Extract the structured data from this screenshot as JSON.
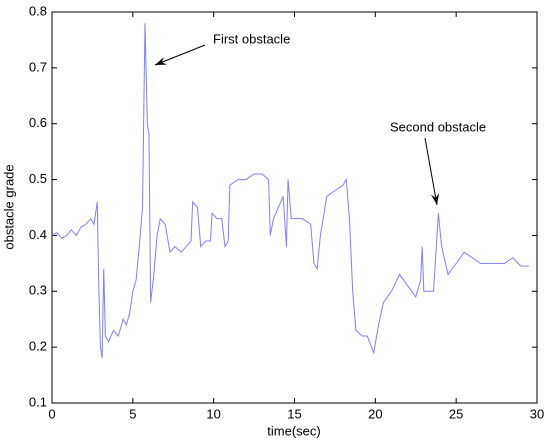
{
  "chart_data": {
    "type": "line",
    "xlabel": "time(sec)",
    "ylabel": "obstacle grade",
    "annotations": [
      "First obstacle",
      "Second obstacle"
    ],
    "xlim": [
      0,
      30
    ],
    "xticks": [
      0,
      5,
      10,
      15,
      20,
      25,
      30
    ],
    "ylim": [
      0.1,
      0.8
    ],
    "yticks": [
      0.1,
      0.2,
      0.3,
      0.4,
      0.5,
      0.6,
      0.7,
      0.8
    ],
    "color": "#7f7fff",
    "x": [
      0,
      0.3,
      0.6,
      0.9,
      1.2,
      1.5,
      1.8,
      2.1,
      2.4,
      2.6,
      2.8,
      2.9,
      3.0,
      3.1,
      3.2,
      3.3,
      3.5,
      3.8,
      4.1,
      4.4,
      4.6,
      4.8,
      5.0,
      5.2,
      5.4,
      5.6,
      5.75,
      5.9,
      6.0,
      6.1,
      6.3,
      6.5,
      6.7,
      7.0,
      7.3,
      7.6,
      8.0,
      8.3,
      8.6,
      8.7,
      9.0,
      9.2,
      9.5,
      9.8,
      9.9,
      10.2,
      10.5,
      10.7,
      10.9,
      11.0,
      11.5,
      12.0,
      12.5,
      13.0,
      13.4,
      13.5,
      13.7,
      14.0,
      14.3,
      14.5,
      14.6,
      14.8,
      15.2,
      15.5,
      16.0,
      16.2,
      16.4,
      16.6,
      17.0,
      17.5,
      18.0,
      18.2,
      18.4,
      18.6,
      18.8,
      19.2,
      19.5,
      19.9,
      20.2,
      20.5,
      21.0,
      21.5,
      22.0,
      22.5,
      22.8,
      22.9,
      23.0,
      23.3,
      23.6,
      23.9,
      24.1,
      24.5,
      25.0,
      25.5,
      26.0,
      26.5,
      27.0,
      27.5,
      28.0,
      28.5,
      29.0,
      29.5
    ],
    "values": [
      0.4,
      0.405,
      0.395,
      0.4,
      0.41,
      0.4,
      0.415,
      0.42,
      0.43,
      0.42,
      0.46,
      0.3,
      0.2,
      0.18,
      0.34,
      0.22,
      0.21,
      0.23,
      0.22,
      0.25,
      0.24,
      0.26,
      0.3,
      0.32,
      0.38,
      0.45,
      0.78,
      0.6,
      0.58,
      0.28,
      0.33,
      0.4,
      0.43,
      0.42,
      0.37,
      0.38,
      0.37,
      0.38,
      0.39,
      0.46,
      0.45,
      0.38,
      0.39,
      0.39,
      0.44,
      0.43,
      0.43,
      0.38,
      0.39,
      0.49,
      0.5,
      0.5,
      0.51,
      0.51,
      0.5,
      0.4,
      0.43,
      0.45,
      0.47,
      0.38,
      0.5,
      0.43,
      0.43,
      0.43,
      0.42,
      0.35,
      0.34,
      0.4,
      0.47,
      0.48,
      0.49,
      0.5,
      0.43,
      0.3,
      0.23,
      0.22,
      0.22,
      0.19,
      0.24,
      0.28,
      0.3,
      0.33,
      0.31,
      0.29,
      0.32,
      0.38,
      0.3,
      0.3,
      0.3,
      0.44,
      0.38,
      0.33,
      0.35,
      0.37,
      0.36,
      0.35,
      0.35,
      0.35,
      0.35,
      0.36,
      0.345,
      0.345
    ]
  }
}
